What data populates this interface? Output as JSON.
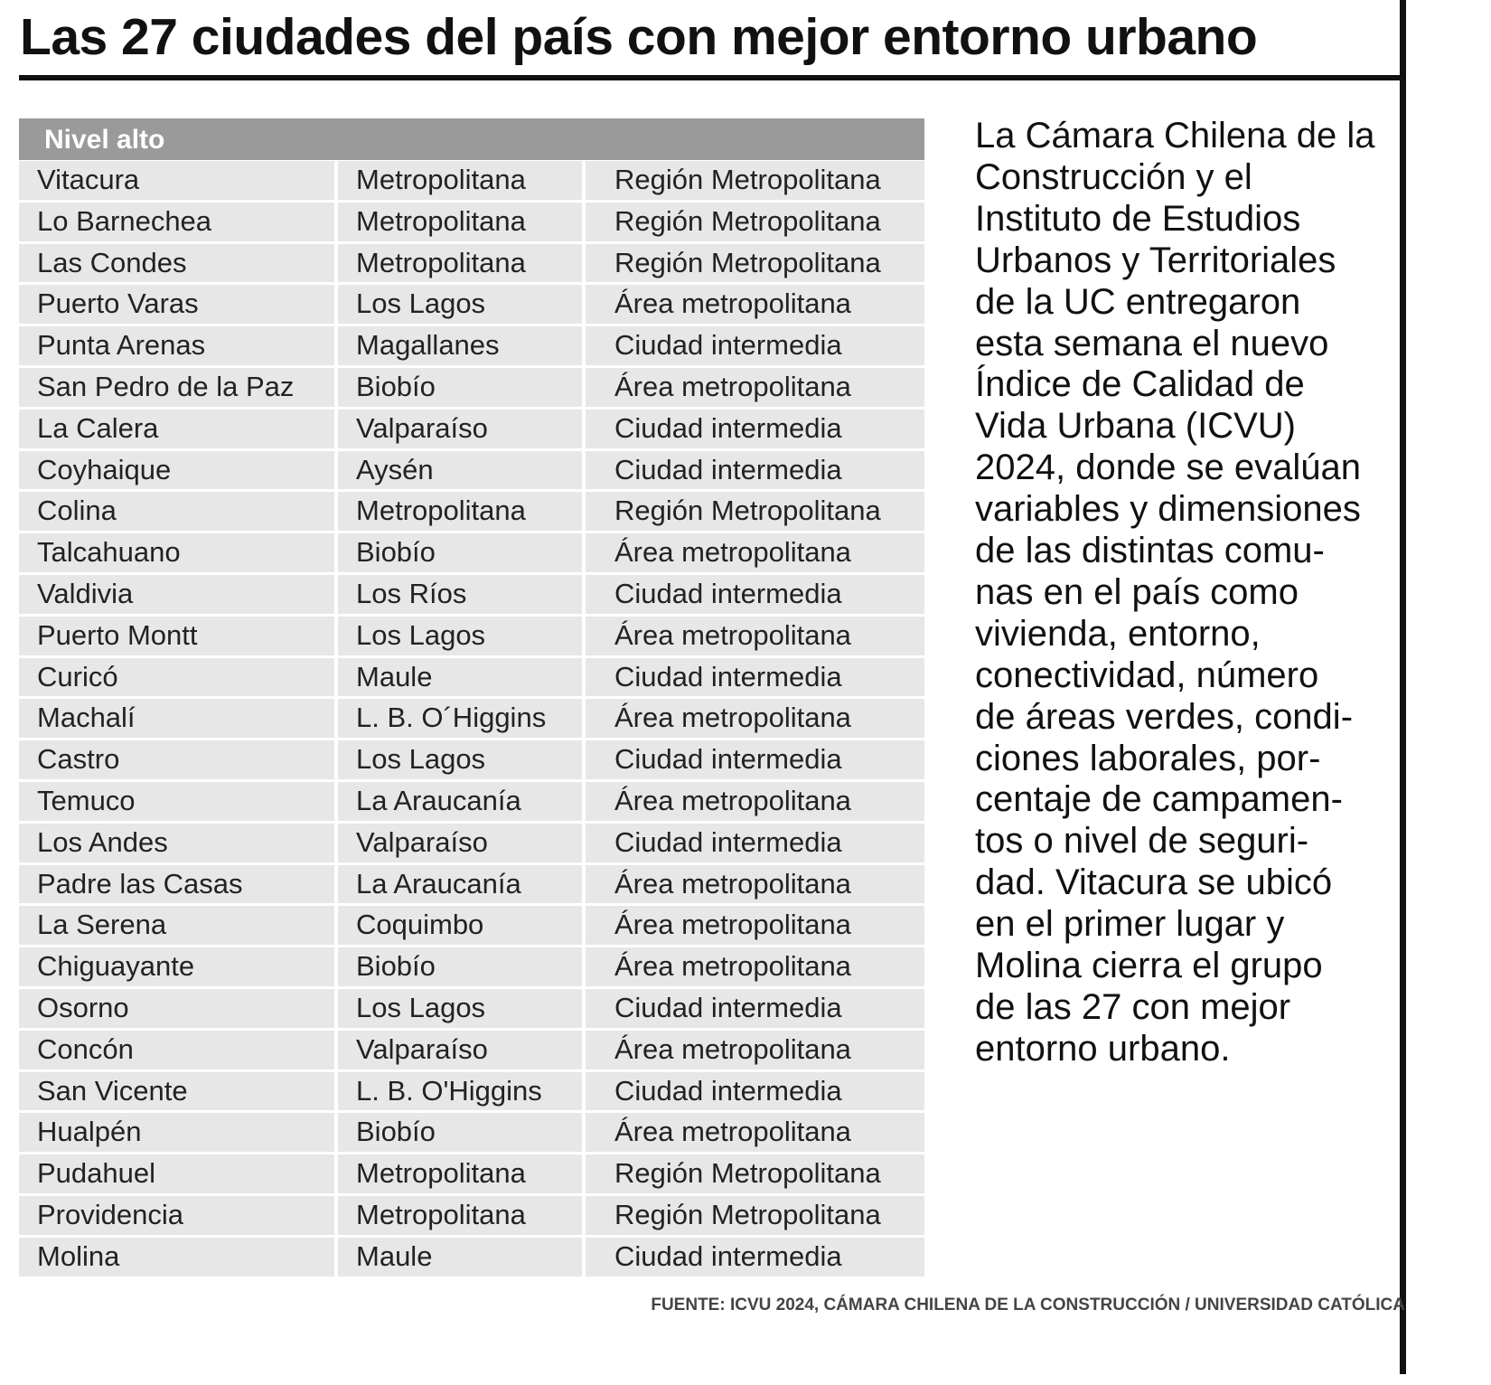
{
  "header": {
    "title": "Las 27 ciudades del país con mejor entorno urbano"
  },
  "table": {
    "header": "Nivel alto",
    "rows": [
      [
        "Vitacura",
        "Metropolitana",
        "Región Metropolitana"
      ],
      [
        "Lo Barnechea",
        "Metropolitana",
        "Región Metropolitana"
      ],
      [
        "Las Condes",
        "Metropolitana",
        "Región Metropolitana"
      ],
      [
        "Puerto Varas",
        "Los Lagos",
        "Área metropolitana"
      ],
      [
        "Punta Arenas",
        "Magallanes",
        "Ciudad intermedia"
      ],
      [
        "San Pedro de la Paz",
        "Biobío",
        "Área metropolitana"
      ],
      [
        "La Calera",
        "Valparaíso",
        "Ciudad intermedia"
      ],
      [
        "Coyhaique",
        "Aysén",
        "Ciudad intermedia"
      ],
      [
        "Colina",
        "Metropolitana",
        "Región Metropolitana"
      ],
      [
        "Talcahuano",
        "Biobío",
        "Área metropolitana"
      ],
      [
        "Valdivia",
        "Los Ríos",
        "Ciudad intermedia"
      ],
      [
        "Puerto Montt",
        "Los Lagos",
        "Área metropolitana"
      ],
      [
        "Curicó",
        "Maule",
        "Ciudad intermedia"
      ],
      [
        "Machalí",
        "L. B. O´Higgins",
        "Área metropolitana"
      ],
      [
        "Castro",
        "Los Lagos",
        "Ciudad intermedia"
      ],
      [
        "Temuco",
        "La Araucanía",
        "Área metropolitana"
      ],
      [
        "Los Andes",
        "Valparaíso",
        "Ciudad intermedia"
      ],
      [
        "Padre las Casas",
        "La Araucanía",
        "Área metropolitana"
      ],
      [
        "La Serena",
        "Coquimbo",
        "Área metropolitana"
      ],
      [
        "Chiguayante",
        "Biobío",
        "Área metropolitana"
      ],
      [
        "Osorno",
        "Los Lagos",
        "Ciudad intermedia"
      ],
      [
        "Concón",
        "Valparaíso",
        "Área metropolitana"
      ],
      [
        "San Vicente",
        "L. B. O'Higgins",
        "Ciudad intermedia"
      ],
      [
        "Hualpén",
        "Biobío",
        "Área metropolitana"
      ],
      [
        "Pudahuel",
        "Metropolitana",
        "Región Metropolitana"
      ],
      [
        "Providencia",
        "Metropolitana",
        "Región Metropolitana"
      ],
      [
        "Molina",
        "Maule",
        "Ciudad intermedia"
      ]
    ]
  },
  "paragraph": {
    "lines": [
      "La Cámara Chilena de la",
      "Construcción y el",
      "Instituto de Estudios",
      "Urbanos y Territoriales",
      "de la UC entregaron",
      "esta semana el nuevo",
      "Índice de Calidad de",
      "Vida Urbana (ICVU)",
      "2024, donde se evalúan",
      "variables y dimensiones",
      "de las distintas comu-",
      "nas en el país como",
      "vivienda, entorno,",
      "conectividad, número",
      "de áreas verdes, condi-",
      "ciones laborales, por-",
      "centaje de campamen-",
      "tos o nivel de seguri-",
      "dad. Vitacura se ubicó",
      "en el primer lugar y",
      "Molina cierra el grupo",
      "de las 27 con mejor",
      "entorno urbano."
    ]
  },
  "source": "FUENTE: ICVU 2024, CÁMARA CHILENA DE LA CONSTRUCCIÓN / UNIVERSIDAD CATÓLICA"
}
